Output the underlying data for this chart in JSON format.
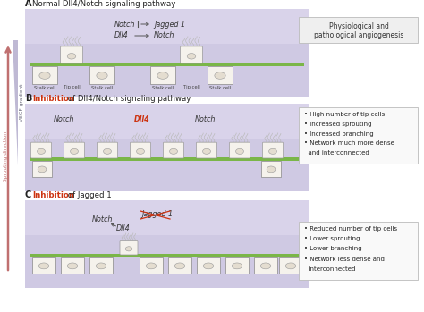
{
  "title_A": "Normal Dll4/Notch signaling pathway",
  "title_B_prefix": "Inhibition",
  "title_B_suffix": " of Dll4/Notch signaling pathway",
  "title_C_prefix": "Inhibition",
  "title_C_suffix": " of Jagged 1",
  "panel_bg_color": "#cfc9e3",
  "fig_bg": "#ffffff",
  "green_bar_color": "#7ab648",
  "cell_fill": "#f5f2ec",
  "inhibition_color": "#cc3311",
  "box_B_lines": [
    "• High number of tip cells",
    "• Increased sprouting",
    "• Increased branching",
    "• Network much more dense",
    "  and interconnected"
  ],
  "box_C_lines": [
    "• Reduced number of tip cells",
    "• Lower sprouting",
    "• Lower branching",
    "• Network less dense and",
    "  interconnected"
  ],
  "stalk_tip_labels_A": [
    "Stalk cell",
    "Tip cell",
    "Stalk cell",
    "Stalk cell",
    "Tip cell",
    "Stalk cell"
  ],
  "vegf_label": "VEGF gradient",
  "sprouting_label": "Sprouting direction"
}
